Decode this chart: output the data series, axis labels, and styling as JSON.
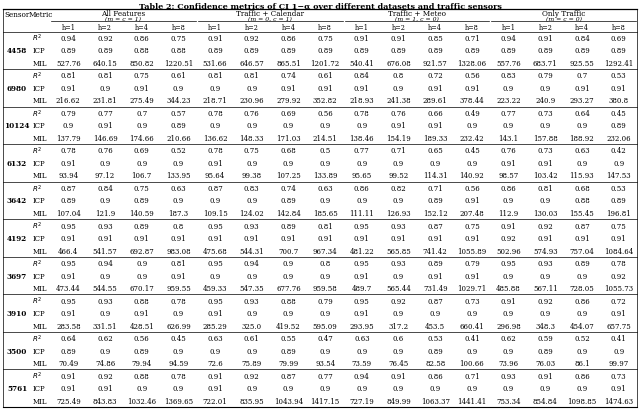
{
  "title": "Table 2: Confidence metrics of CI 1−α over different datasets and traffic sensors",
  "col_groups": [
    {
      "label": "All Features",
      "sub": "(m = c = 1)",
      "span": 4
    },
    {
      "label": "Traffic + Calendar",
      "sub": "(m = 0, c = 1)",
      "span": 4
    },
    {
      "label": "Traffic + Meteo",
      "sub": "(m = 1, c = 0)",
      "span": 4
    },
    {
      "label": "Only Traffic",
      "sub": "(m = c = 0)",
      "span": 4
    }
  ],
  "h_labels": [
    "h=1",
    "h=2",
    "h=4",
    "h=8",
    "h=1",
    "h=2",
    "h=4",
    "h=8",
    "h=1",
    "h=2",
    "h=4",
    "h=8",
    "h=1",
    "h=2",
    "h=4",
    "h=8"
  ],
  "sensors": [
    {
      "id": "4458",
      "rows": [
        {
          "metric": "R2",
          "vals": [
            "0.94",
            "0.92",
            "0.86",
            "0.75",
            "0.91",
            "0.92",
            "0.86",
            "0.75",
            "0.91",
            "0.91",
            "0.85",
            "0.71",
            "0.94",
            "0.91",
            "0.84",
            "0.69"
          ]
        },
        {
          "metric": "ICP",
          "vals": [
            "0.89",
            "0.89",
            "0.88",
            "0.88",
            "0.89",
            "0.89",
            "0.89",
            "0.89",
            "0.89",
            "0.89",
            "0.89",
            "0.89",
            "0.89",
            "0.89",
            "0.89",
            "0.89"
          ]
        },
        {
          "metric": "MIL",
          "vals": [
            "527.76",
            "640.15",
            "850.82",
            "1220.51",
            "531.66",
            "646.57",
            "865.51",
            "1201.72",
            "540.41",
            "676.08",
            "921.57",
            "1328.06",
            "557.76",
            "683.71",
            "925.55",
            "1292.41"
          ]
        }
      ]
    },
    {
      "id": "6980",
      "rows": [
        {
          "metric": "R2",
          "vals": [
            "0.81",
            "0.81",
            "0.75",
            "0.61",
            "0.81",
            "0.81",
            "0.74",
            "0.61",
            "0.84",
            "0.8",
            "0.72",
            "0.56",
            "0.83",
            "0.79",
            "0.7",
            "0.53"
          ]
        },
        {
          "metric": "ICP",
          "vals": [
            "0.91",
            "0.9",
            "0.91",
            "0.9",
            "0.9",
            "0.9",
            "0.91",
            "0.91",
            "0.91",
            "0.9",
            "0.91",
            "0.91",
            "0.9",
            "0.9",
            "0.91",
            "0.91"
          ]
        },
        {
          "metric": "MIL",
          "vals": [
            "216.62",
            "231.81",
            "275.49",
            "344.23",
            "218.71",
            "230.96",
            "279.92",
            "352.82",
            "218.93",
            "241.38",
            "289.61",
            "378.44",
            "223.22",
            "240.9",
            "293.27",
            "380.8"
          ]
        }
      ]
    },
    {
      "id": "10124",
      "rows": [
        {
          "metric": "R2",
          "vals": [
            "0.79",
            "0.77",
            "0.7",
            "0.57",
            "0.78",
            "0.76",
            "0.69",
            "0.56",
            "0.78",
            "0.76",
            "0.66",
            "0.49",
            "0.77",
            "0.73",
            "0.64",
            "0.45"
          ]
        },
        {
          "metric": "ICP",
          "vals": [
            "0.9",
            "0.91",
            "0.9",
            "0.89",
            "0.9",
            "0.9",
            "0.9",
            "0.9",
            "0.9",
            "0.91",
            "0.91",
            "0.9",
            "0.9",
            "0.9",
            "0.9",
            "0.89"
          ]
        },
        {
          "metric": "MIL",
          "vals": [
            "137.79",
            "146.69",
            "174.66",
            "210.66",
            "136.62",
            "148.33",
            "171.03",
            "214.51",
            "138.46",
            "154.19",
            "189.33",
            "232.42",
            "143.1",
            "157.88",
            "188.92",
            "232.06"
          ]
        }
      ]
    },
    {
      "id": "6132",
      "rows": [
        {
          "metric": "R2",
          "vals": [
            "0.78",
            "0.76",
            "0.69",
            "0.52",
            "0.78",
            "0.75",
            "0.68",
            "0.5",
            "0.77",
            "0.71",
            "0.65",
            "0.45",
            "0.76",
            "0.73",
            "0.63",
            "0.42"
          ]
        },
        {
          "metric": "ICP",
          "vals": [
            "0.91",
            "0.9",
            "0.9",
            "0.9",
            "0.91",
            "0.9",
            "0.9",
            "0.9",
            "0.9",
            "0.9",
            "0.9",
            "0.9",
            "0.91",
            "0.91",
            "0.9",
            "0.9"
          ]
        },
        {
          "metric": "MIL",
          "vals": [
            "93.94",
            "97.12",
            "106.7",
            "133.95",
            "95.64",
            "99.38",
            "107.25",
            "133.89",
            "95.65",
            "99.52",
            "114.31",
            "140.92",
            "98.57",
            "103.42",
            "115.93",
            "147.53"
          ]
        }
      ]
    },
    {
      "id": "3642",
      "rows": [
        {
          "metric": "R2",
          "vals": [
            "0.87",
            "0.84",
            "0.75",
            "0.63",
            "0.87",
            "0.83",
            "0.74",
            "0.63",
            "0.86",
            "0.82",
            "0.71",
            "0.56",
            "0.86",
            "0.81",
            "0.68",
            "0.53"
          ]
        },
        {
          "metric": "ICP",
          "vals": [
            "0.89",
            "0.9",
            "0.89",
            "0.9",
            "0.9",
            "0.9",
            "0.89",
            "0.9",
            "0.9",
            "0.9",
            "0.89",
            "0.91",
            "0.9",
            "0.9",
            "0.88",
            "0.89"
          ]
        },
        {
          "metric": "MIL",
          "vals": [
            "107.04",
            "121.9",
            "140.59",
            "187.3",
            "109.15",
            "124.02",
            "142.84",
            "185.65",
            "111.11",
            "126.93",
            "152.12",
            "207.48",
            "112.9",
            "130.03",
            "155.45",
            "196.81"
          ]
        }
      ]
    },
    {
      "id": "4192",
      "rows": [
        {
          "metric": "R2",
          "vals": [
            "0.95",
            "0.93",
            "0.89",
            "0.8",
            "0.95",
            "0.93",
            "0.89",
            "0.81",
            "0.95",
            "0.93",
            "0.87",
            "0.75",
            "0.91",
            "0.92",
            "0.87",
            "0.75"
          ]
        },
        {
          "metric": "ICP",
          "vals": [
            "0.91",
            "0.91",
            "0.91",
            "0.91",
            "0.91",
            "0.91",
            "0.91",
            "0.91",
            "0.91",
            "0.91",
            "0.91",
            "0.91",
            "0.92",
            "0.91",
            "0.91",
            "0.91"
          ]
        },
        {
          "metric": "MIL",
          "vals": [
            "466.4",
            "541.57",
            "692.87",
            "983.08",
            "475.68",
            "544.31",
            "700.7",
            "967.34",
            "481.22",
            "565.85",
            "741.42",
            "1055.89",
            "502.96",
            "574.93",
            "757.04",
            "1084.64"
          ]
        }
      ]
    },
    {
      "id": "3697",
      "rows": [
        {
          "metric": "R2",
          "vals": [
            "0.95",
            "0.94",
            "0.9",
            "0.81",
            "0.95",
            "0.94",
            "0.9",
            "0.8",
            "0.95",
            "0.93",
            "0.89",
            "0.79",
            "0.95",
            "0.93",
            "0.89",
            "0.78"
          ]
        },
        {
          "metric": "ICP",
          "vals": [
            "0.91",
            "0.9",
            "0.9",
            "0.91",
            "0.9",
            "0.9",
            "0.9",
            "0.9",
            "0.91",
            "0.9",
            "0.91",
            "0.91",
            "0.9",
            "0.9",
            "0.9",
            "0.92"
          ]
        },
        {
          "metric": "MIL",
          "vals": [
            "473.44",
            "544.55",
            "670.17",
            "959.55",
            "459.33",
            "547.35",
            "677.76",
            "959.58",
            "489.7",
            "565.44",
            "731.49",
            "1029.71",
            "485.88",
            "567.11",
            "728.05",
            "1055.73"
          ]
        }
      ]
    },
    {
      "id": "3910",
      "rows": [
        {
          "metric": "R2",
          "vals": [
            "0.95",
            "0.93",
            "0.88",
            "0.78",
            "0.95",
            "0.93",
            "0.88",
            "0.79",
            "0.95",
            "0.92",
            "0.87",
            "0.73",
            "0.91",
            "0.92",
            "0.86",
            "0.72"
          ]
        },
        {
          "metric": "ICP",
          "vals": [
            "0.91",
            "0.9",
            "0.91",
            "0.9",
            "0.91",
            "0.9",
            "0.9",
            "0.9",
            "0.91",
            "0.9",
            "0.9",
            "0.9",
            "0.9",
            "0.9",
            "0.9",
            "0.91"
          ]
        },
        {
          "metric": "MIL",
          "vals": [
            "283.58",
            "331.51",
            "428.51",
            "626.99",
            "285.29",
            "325.0",
            "419.52",
            "595.09",
            "293.95",
            "317.2",
            "453.5",
            "660.41",
            "296.98",
            "348.3",
            "454.07",
            "657.75"
          ]
        }
      ]
    },
    {
      "id": "3500",
      "rows": [
        {
          "metric": "R2",
          "vals": [
            "0.64",
            "0.62",
            "0.56",
            "0.45",
            "0.63",
            "0.61",
            "0.55",
            "0.47",
            "0.63",
            "0.6",
            "0.53",
            "0.41",
            "0.62",
            "0.59",
            "0.52",
            "0.41"
          ]
        },
        {
          "metric": "ICP",
          "vals": [
            "0.89",
            "0.9",
            "0.89",
            "0.9",
            "0.9",
            "0.9",
            "0.89",
            "0.9",
            "0.9",
            "0.9",
            "0.89",
            "0.9",
            "0.9",
            "0.89",
            "0.9",
            "0.9"
          ]
        },
        {
          "metric": "MIL",
          "vals": [
            "70.49",
            "74.86",
            "79.94",
            "94.59",
            "72.6",
            "75.89",
            "79.99",
            "93.54",
            "73.59",
            "76.45",
            "82.58",
            "100.66",
            "73.96",
            "76.03",
            "86.1",
            "99.97"
          ]
        }
      ]
    },
    {
      "id": "5761",
      "rows": [
        {
          "metric": "R2",
          "vals": [
            "0.91",
            "0.92",
            "0.88",
            "0.78",
            "0.91",
            "0.92",
            "0.87",
            "0.77",
            "0.94",
            "0.91",
            "0.86",
            "0.71",
            "0.93",
            "0.91",
            "0.86",
            "0.73"
          ]
        },
        {
          "metric": "ICP",
          "vals": [
            "0.91",
            "0.91",
            "0.9",
            "0.9",
            "0.91",
            "0.9",
            "0.9",
            "0.9",
            "0.9",
            "0.9",
            "0.9",
            "0.9",
            "0.9",
            "0.9",
            "0.9",
            "0.91"
          ]
        },
        {
          "metric": "MIL",
          "vals": [
            "725.49",
            "843.83",
            "1032.46",
            "1369.65",
            "722.01",
            "835.95",
            "1043.94",
            "1417.15",
            "727.19",
            "849.99",
            "1063.37",
            "1441.41",
            "753.34",
            "854.84",
            "1098.85",
            "1474.63"
          ]
        }
      ]
    }
  ],
  "figsize": [
    6.4,
    4.1
  ],
  "dpi": 100,
  "bg_color": "white",
  "title_fontsize": 5.8,
  "header_fontsize": 5.2,
  "data_fontsize": 5.0,
  "sensor_fontsize": 5.2,
  "metric_fontsize": 5.0
}
